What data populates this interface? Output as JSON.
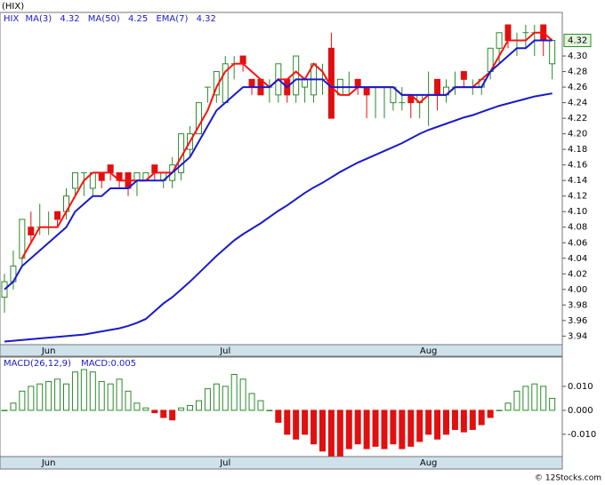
{
  "chart_data": [
    {
      "type": "candlestick",
      "title": "(HIX)",
      "ticker": "HIX",
      "categories": [
        null,
        null,
        null,
        null,
        null,
        "Jun",
        null,
        null,
        null,
        null,
        null,
        null,
        null,
        null,
        null,
        null,
        null,
        null,
        null,
        null,
        null,
        null,
        null,
        null,
        null,
        "Jul",
        null,
        null,
        null,
        null,
        null,
        null,
        null,
        null,
        null,
        null,
        null,
        null,
        null,
        null,
        null,
        null,
        null,
        null,
        null,
        null,
        null,
        null,
        "Aug",
        null,
        null,
        null,
        null,
        null,
        null,
        null,
        null,
        null,
        null,
        null,
        null,
        null,
        null
      ],
      "open": [
        3.99,
        4.01,
        4.04,
        4.08,
        4.08,
        4.08,
        4.1,
        4.1,
        4.13,
        4.15,
        4.13,
        4.15,
        4.16,
        4.15,
        4.15,
        4.14,
        4.14,
        4.16,
        4.14,
        4.14,
        4.15,
        4.18,
        4.2,
        4.26,
        4.25,
        4.24,
        4.29,
        4.3,
        4.27,
        4.27,
        4.26,
        4.25,
        4.27,
        4.25,
        4.26,
        4.25,
        4.27,
        4.31,
        4.25,
        4.26,
        4.27,
        4.26,
        4.26,
        4.26,
        4.24,
        4.24,
        4.25,
        4.24,
        4.25,
        4.27,
        4.25,
        4.26,
        4.28,
        4.26,
        4.26,
        4.28,
        4.31,
        4.34,
        4.32,
        4.33,
        4.33,
        4.34,
        4.29
      ],
      "close": [
        4.01,
        4.03,
        4.09,
        4.07,
        4.08,
        4.08,
        4.09,
        4.12,
        4.15,
        4.15,
        4.15,
        4.14,
        4.15,
        4.14,
        4.13,
        4.15,
        4.15,
        4.15,
        4.15,
        4.16,
        4.2,
        4.2,
        4.24,
        4.26,
        4.28,
        4.29,
        4.29,
        4.29,
        4.26,
        4.25,
        4.26,
        4.29,
        4.25,
        4.3,
        4.27,
        4.29,
        4.27,
        4.22,
        4.27,
        4.26,
        4.26,
        4.25,
        4.26,
        4.26,
        4.26,
        4.24,
        4.24,
        4.25,
        4.25,
        4.25,
        4.26,
        4.26,
        4.27,
        4.26,
        4.27,
        4.31,
        4.33,
        4.32,
        4.32,
        4.33,
        4.33,
        4.32,
        4.32
      ],
      "high": [
        4.02,
        4.05,
        4.09,
        4.1,
        4.11,
        4.1,
        4.1,
        4.13,
        4.15,
        4.15,
        4.15,
        4.15,
        4.16,
        4.15,
        4.15,
        4.15,
        4.15,
        4.16,
        4.15,
        4.17,
        4.2,
        4.21,
        4.24,
        4.26,
        4.28,
        4.3,
        4.3,
        4.3,
        4.27,
        4.27,
        4.27,
        4.29,
        4.27,
        4.3,
        4.27,
        4.29,
        4.29,
        4.33,
        4.27,
        4.28,
        4.27,
        4.26,
        4.26,
        4.26,
        4.26,
        4.26,
        4.25,
        4.25,
        4.28,
        4.27,
        4.27,
        4.28,
        4.28,
        4.27,
        4.27,
        4.31,
        4.33,
        4.34,
        4.33,
        4.34,
        4.34,
        4.34,
        4.32
      ],
      "low": [
        3.97,
        4.0,
        4.03,
        4.06,
        4.07,
        4.07,
        4.08,
        4.09,
        4.12,
        4.12,
        4.12,
        4.13,
        4.14,
        4.13,
        4.12,
        4.12,
        4.14,
        4.14,
        4.13,
        4.13,
        4.14,
        4.17,
        4.2,
        4.24,
        4.24,
        4.24,
        4.27,
        4.28,
        4.25,
        4.25,
        4.24,
        4.24,
        4.24,
        4.24,
        4.24,
        4.24,
        4.25,
        4.22,
        4.25,
        4.25,
        4.25,
        4.22,
        4.22,
        4.22,
        4.23,
        4.23,
        4.22,
        4.22,
        4.21,
        4.23,
        4.24,
        4.25,
        4.26,
        4.25,
        4.25,
        4.27,
        4.29,
        4.31,
        4.3,
        4.31,
        4.3,
        4.3,
        4.27
      ],
      "up_color": "#2a8a2a",
      "down_color": "#e01010",
      "series": [
        {
          "name": "MA(3)",
          "color": "#ff1010",
          "label_value": 4.32,
          "values": [
            null,
            null,
            4.04,
            4.06,
            4.08,
            4.08,
            4.08,
            4.1,
            4.12,
            4.14,
            4.15,
            4.15,
            4.15,
            4.14,
            4.14,
            4.14,
            4.14,
            4.15,
            4.15,
            4.15,
            4.17,
            4.19,
            4.21,
            4.23,
            4.26,
            4.28,
            4.29,
            4.29,
            4.28,
            4.27,
            4.26,
            4.27,
            4.27,
            4.28,
            4.27,
            4.29,
            4.28,
            4.26,
            4.25,
            4.25,
            4.26,
            4.26,
            4.26,
            4.26,
            4.26,
            4.25,
            4.25,
            4.24,
            4.25,
            4.25,
            4.25,
            4.26,
            4.26,
            4.26,
            4.27,
            4.28,
            4.3,
            4.32,
            4.32,
            4.32,
            4.33,
            4.33,
            4.32
          ]
        },
        {
          "name": "MA(50)",
          "color": "#1a1acc",
          "label_value": 4.25,
          "values": [
            3.933,
            3.934,
            3.935,
            3.936,
            3.937,
            3.938,
            3.939,
            3.94,
            3.941,
            3.942,
            3.944,
            3.946,
            3.948,
            3.95,
            3.953,
            3.957,
            3.962,
            3.972,
            3.982,
            3.99,
            4.0,
            4.01,
            4.021,
            4.032,
            4.043,
            4.053,
            4.063,
            4.071,
            4.078,
            4.085,
            4.093,
            4.101,
            4.108,
            4.116,
            4.124,
            4.131,
            4.137,
            4.144,
            4.151,
            4.157,
            4.163,
            4.168,
            4.173,
            4.178,
            4.183,
            4.188,
            4.194,
            4.2,
            4.205,
            4.209,
            4.213,
            4.217,
            4.221,
            4.224,
            4.228,
            4.232,
            4.236,
            4.239,
            4.242,
            4.245,
            4.248,
            4.25,
            4.252
          ]
        },
        {
          "name": "EMA(7)",
          "color": "#1a1acc",
          "label_value": 4.32,
          "values": [
            4.0,
            4.01,
            4.03,
            4.04,
            4.05,
            4.06,
            4.07,
            4.08,
            4.1,
            4.11,
            4.12,
            4.12,
            4.13,
            4.13,
            4.13,
            4.14,
            4.14,
            4.14,
            4.14,
            4.15,
            4.16,
            4.17,
            4.19,
            4.21,
            4.23,
            4.24,
            4.25,
            4.26,
            4.26,
            4.26,
            4.26,
            4.27,
            4.26,
            4.27,
            4.27,
            4.27,
            4.27,
            4.26,
            4.26,
            4.26,
            4.26,
            4.26,
            4.26,
            4.26,
            4.26,
            4.25,
            4.25,
            4.25,
            4.25,
            4.25,
            4.25,
            4.26,
            4.26,
            4.26,
            4.26,
            4.28,
            4.29,
            4.3,
            4.31,
            4.31,
            4.32,
            4.32,
            4.32
          ]
        }
      ],
      "last_price": 4.32,
      "ylim": [
        3.929,
        4.356
      ],
      "yticks": [
        3.94,
        3.96,
        3.98,
        {
          "value": 4,
          "label": "4.00"
        },
        4.02,
        4.04,
        4.06,
        4.08,
        {
          "value": 4.1,
          "label": "4.10"
        },
        4.12,
        4.14,
        4.16,
        4.18,
        {
          "value": 4.2,
          "label": "4.20"
        },
        4.22,
        4.24,
        4.26,
        4.28,
        {
          "value": 4.3,
          "label": "4.30"
        }
      ]
    },
    {
      "type": "bar",
      "title": "MACD(26,12,9)",
      "value_title": "MACD:0.005",
      "categories": [
        null,
        null,
        null,
        null,
        null,
        "Jun",
        null,
        null,
        null,
        null,
        null,
        null,
        null,
        null,
        null,
        null,
        null,
        null,
        null,
        null,
        null,
        null,
        null,
        null,
        null,
        "Jul",
        null,
        null,
        null,
        null,
        null,
        null,
        null,
        null,
        null,
        null,
        null,
        null,
        null,
        null,
        null,
        null,
        null,
        null,
        null,
        null,
        null,
        null,
        "Aug",
        null,
        null,
        null,
        null,
        null,
        null,
        null,
        null,
        null,
        null,
        null,
        null,
        null,
        null
      ],
      "values": [
        0.0,
        0.003,
        0.008,
        0.01,
        0.011,
        0.012,
        0.013,
        0.011,
        0.016,
        0.017,
        0.016,
        0.012,
        0.011,
        0.013,
        0.008,
        0.003,
        0.001,
        -0.001,
        -0.003,
        -0.004,
        0.001,
        0.002,
        0.004,
        0.009,
        0.011,
        0.01,
        0.015,
        0.013,
        0.007,
        0.004,
        0.0,
        -0.005,
        -0.01,
        -0.012,
        -0.01,
        -0.014,
        -0.017,
        -0.019,
        -0.019,
        -0.016,
        -0.014,
        -0.016,
        -0.015,
        -0.016,
        -0.014,
        -0.016,
        -0.015,
        -0.013,
        -0.01,
        -0.012,
        -0.01,
        -0.008,
        -0.009,
        -0.008,
        -0.006,
        -0.003,
        0.0,
        0.003,
        0.008,
        0.01,
        0.011,
        0.01,
        0.005
      ],
      "up_color": "#2a8a2a",
      "down_color": "#e01010",
      "ylim": [
        -0.0193,
        0.0222
      ],
      "yticks": [
        {
          "value": -0.01,
          "label": "-0.010"
        },
        {
          "value": 0,
          "label": "0.000"
        },
        {
          "value": 0.01,
          "label": "0.010"
        }
      ]
    }
  ],
  "footer": "© 12Stocks.com"
}
